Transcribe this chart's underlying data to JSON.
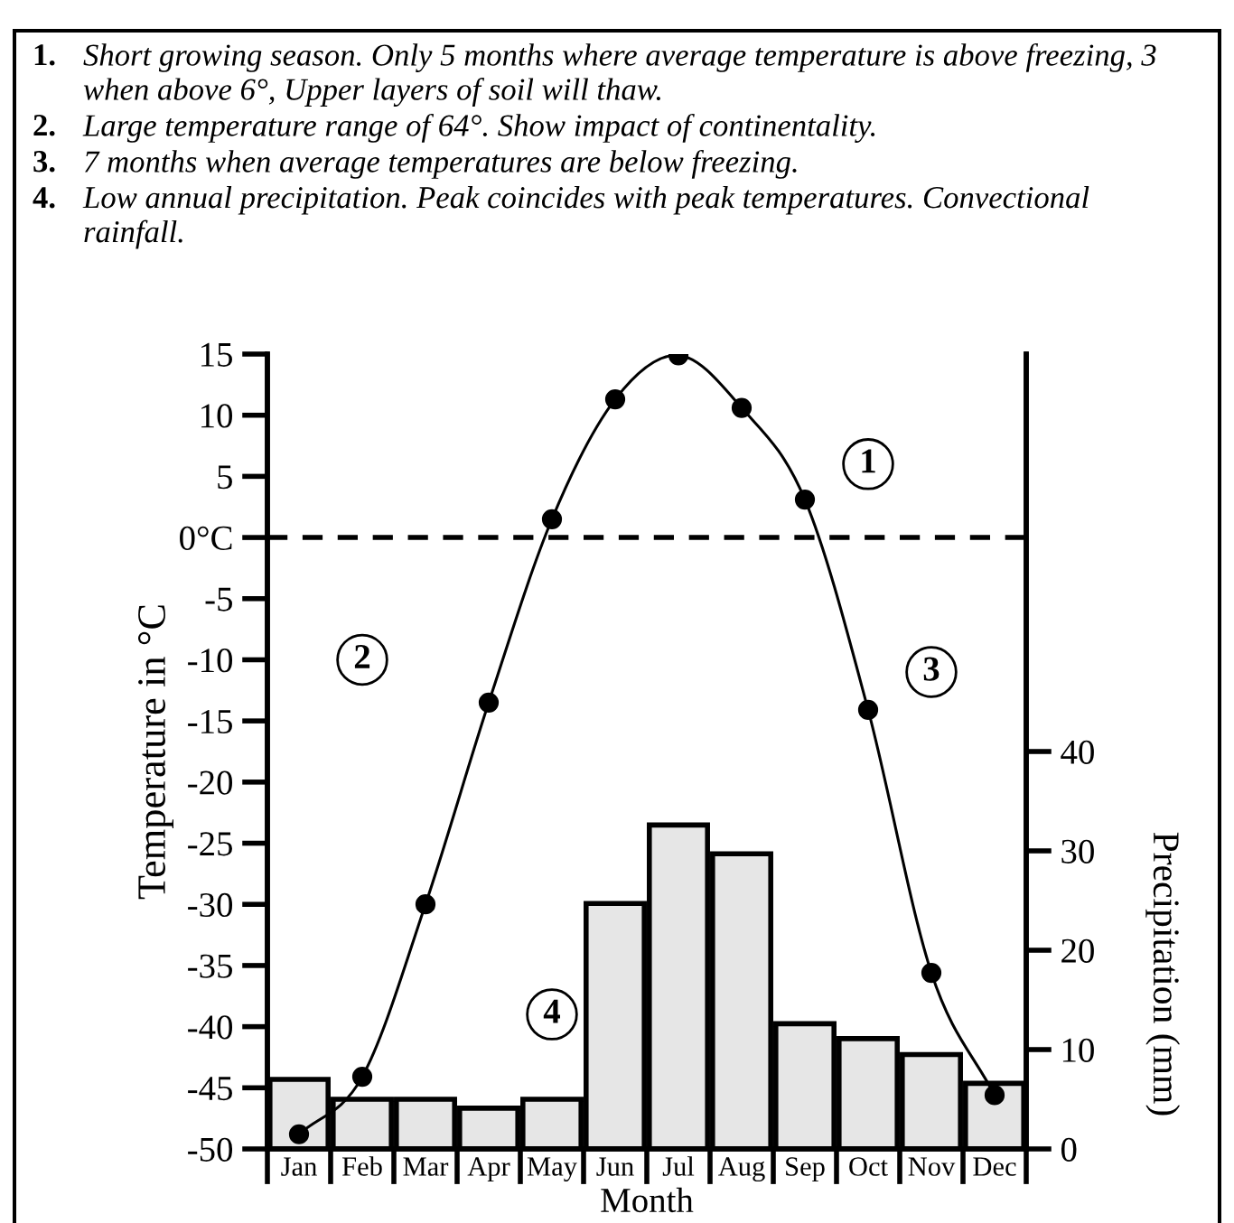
{
  "chart_data": {
    "type": "line",
    "xlabel": "Month",
    "ylabel": "Temperature in °C",
    "y2label": "Precipitation (mm)",
    "categories": [
      "Jan",
      "Feb",
      "Mar",
      "Apr",
      "May",
      "Jun",
      "Jul",
      "Aug",
      "Sep",
      "Oct",
      "Nov",
      "Dec"
    ],
    "series": [
      {
        "type": "line",
        "color": "#000000",
        "marker": "circle",
        "line_style": "solid",
        "values": [
          -48.8,
          -44.1,
          -30.0,
          -13.5,
          1.5,
          11.3,
          14.9,
          10.6,
          3.1,
          -14.1,
          -35.6,
          -45.6
        ]
      },
      {
        "type": "bar",
        "axis": "y2",
        "color": "#e6e6e6",
        "values": [
          7.0,
          5.0,
          5.0,
          4.1,
          5.0,
          24.7,
          32.6,
          29.7,
          12.6,
          11.1,
          9.5,
          6.6
        ]
      }
    ],
    "ylim": [
      -50,
      15
    ],
    "yticks": [
      {
        "value": -50,
        "label": "-50"
      },
      {
        "value": -45,
        "label": "-45"
      },
      {
        "value": -40,
        "label": "-40"
      },
      {
        "value": -35,
        "label": "-35"
      },
      {
        "value": -30,
        "label": "-30"
      },
      {
        "value": -25,
        "label": "-25"
      },
      {
        "value": -20,
        "label": "-20"
      },
      {
        "value": -15,
        "label": "-15"
      },
      {
        "value": -10,
        "label": "-10"
      },
      {
        "value": -5,
        "label": "-5"
      },
      {
        "value": 0,
        "label": "0°C"
      },
      5,
      10,
      15
    ],
    "y2lim": [
      0,
      80
    ],
    "y2ticks": [
      0,
      10,
      20,
      30,
      40
    ],
    "ref_lines": [
      {
        "axis": "y",
        "value": 0,
        "color": "#000000",
        "line_style": "dashed"
      }
    ],
    "grid": false,
    "legend": false,
    "annotations": [
      "1. Short growing season. Only 5 months where average temperature is above freezing, 3 when above 6°, Upper layers of soil will thaw.",
      "2. Large temperature range of 64°. Show impact of continentality.",
      "3. 7 months when average temperatures are below freezing.",
      "4. Low annual precipitation. Peak coincides with peak temperatures. Convectional rainfall.",
      {
        "text": "1",
        "x": "Oct",
        "y": 6
      },
      {
        "text": "2",
        "x": "Feb",
        "y": -10
      },
      {
        "text": "3",
        "x": "Nov",
        "y": -11
      },
      {
        "text": "4",
        "x": "May",
        "y": -39
      }
    ]
  }
}
